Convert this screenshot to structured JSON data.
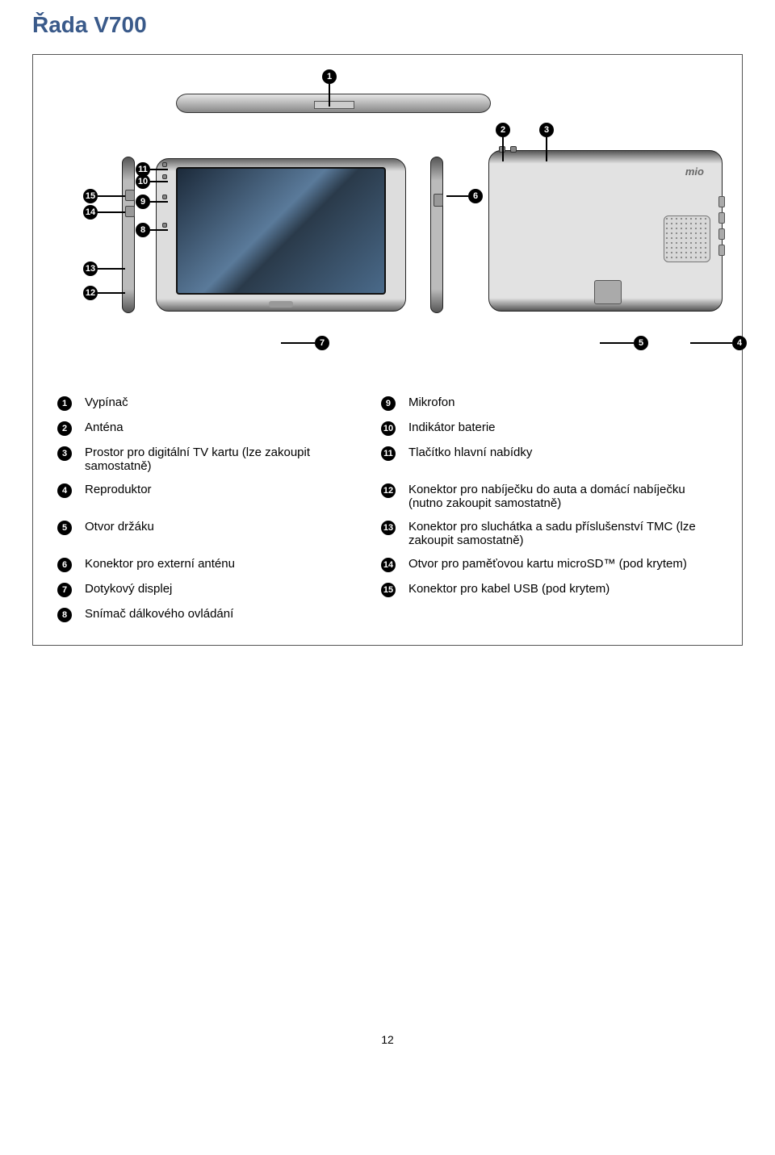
{
  "title": "Řada V700",
  "logo_text": "mio",
  "callouts": {
    "n1": "1",
    "n2": "2",
    "n3": "3",
    "n4": "4",
    "n5": "5",
    "n6": "6",
    "n7": "7",
    "n8": "8",
    "n9": "9",
    "n10": "10",
    "n11": "11",
    "n12": "12",
    "n13": "13",
    "n14": "14",
    "n15": "15"
  },
  "legend": [
    {
      "l": "1",
      "lt": "Vypínač",
      "r": "9",
      "rt": "Mikrofon"
    },
    {
      "l": "2",
      "lt": "Anténa",
      "r": "10",
      "rt": "Indikátor baterie"
    },
    {
      "l": "3",
      "lt": "Prostor pro digitální TV kartu (lze zakoupit samostatně)",
      "r": "11",
      "rt": "Tlačítko hlavní nabídky"
    },
    {
      "l": "4",
      "lt": "Reproduktor",
      "r": "12",
      "rt": "Konektor pro nabíječku do auta a domácí nabíječku (nutno zakoupit samostatně)"
    },
    {
      "l": "5",
      "lt": "Otvor držáku",
      "r": "13",
      "rt": "Konektor pro sluchátka a sadu příslušenství TMC (lze zakoupit samostatně)"
    },
    {
      "l": "6",
      "lt": "Konektor pro externí anténu",
      "r": "14",
      "rt": "Otvor pro paměťovou kartu microSD™ (pod krytem)"
    },
    {
      "l": "7",
      "lt": "Dotykový displej",
      "r": "15",
      "rt": "Konektor pro kabel USB (pod krytem)"
    },
    {
      "l": "8",
      "lt": "Snímač dálkového ovládání",
      "r": "",
      "rt": ""
    }
  ],
  "page_number": "12"
}
